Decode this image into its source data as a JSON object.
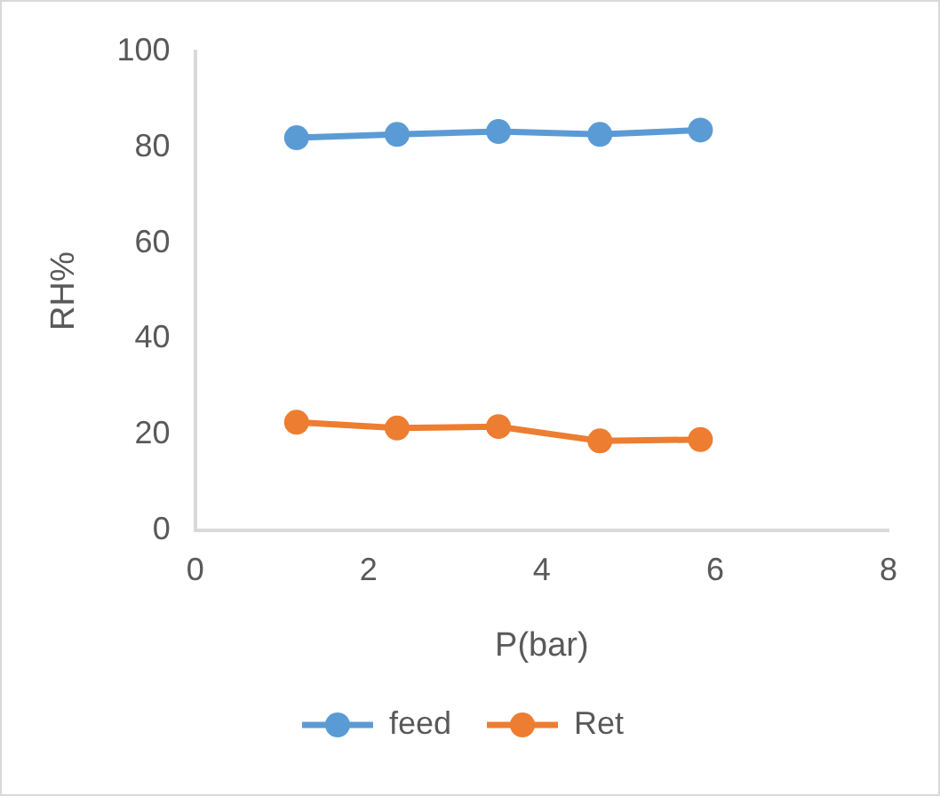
{
  "chart_data": {
    "type": "line",
    "xlabel": "P(bar)",
    "ylabel": "RH%",
    "x": [
      1.17,
      2.33,
      3.5,
      4.67,
      5.83
    ],
    "series": [
      {
        "name": "feed",
        "color": "#5b9bd5",
        "values": [
          82,
          82.7,
          83.3,
          82.7,
          83.6
        ]
      },
      {
        "name": "Ret",
        "color": "#ed7d31",
        "values": [
          22.6,
          21.4,
          21.7,
          18.7,
          19
        ]
      }
    ],
    "xlim": [
      0,
      8
    ],
    "xticks": [
      0,
      2,
      4,
      6,
      8
    ],
    "ylim": [
      0,
      100
    ],
    "yticks": [
      0,
      20,
      40,
      60,
      80,
      100
    ],
    "grid": false,
    "legend": "bottom",
    "marker": "circle",
    "line_style": "solid"
  }
}
